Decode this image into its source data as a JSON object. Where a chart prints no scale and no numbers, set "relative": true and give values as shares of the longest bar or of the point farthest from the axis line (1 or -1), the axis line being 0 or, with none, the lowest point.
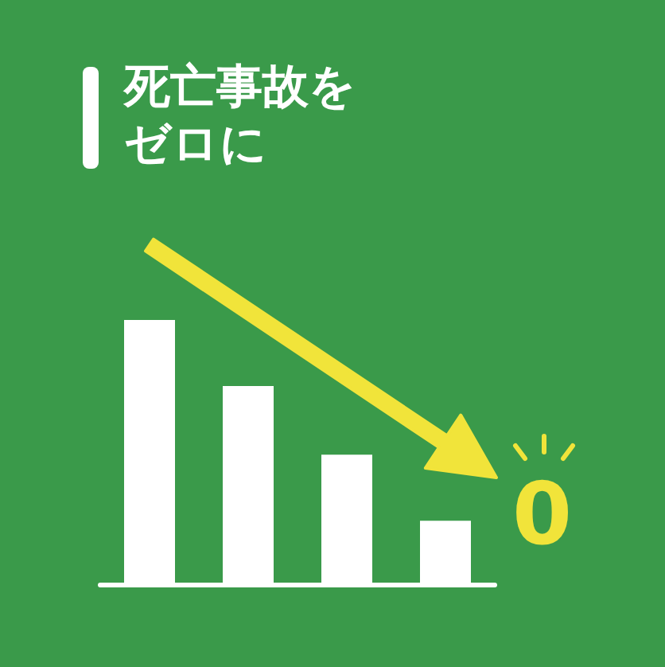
{
  "chart_data": {
    "type": "bar",
    "title": "死亡事故をゼロに",
    "relative": true,
    "categories": [
      null,
      null,
      null,
      null
    ],
    "values": [
      1,
      0.75,
      0.49,
      0.24
    ],
    "color": "#ffffff",
    "annotations": [
      "0"
    ]
  }
}
